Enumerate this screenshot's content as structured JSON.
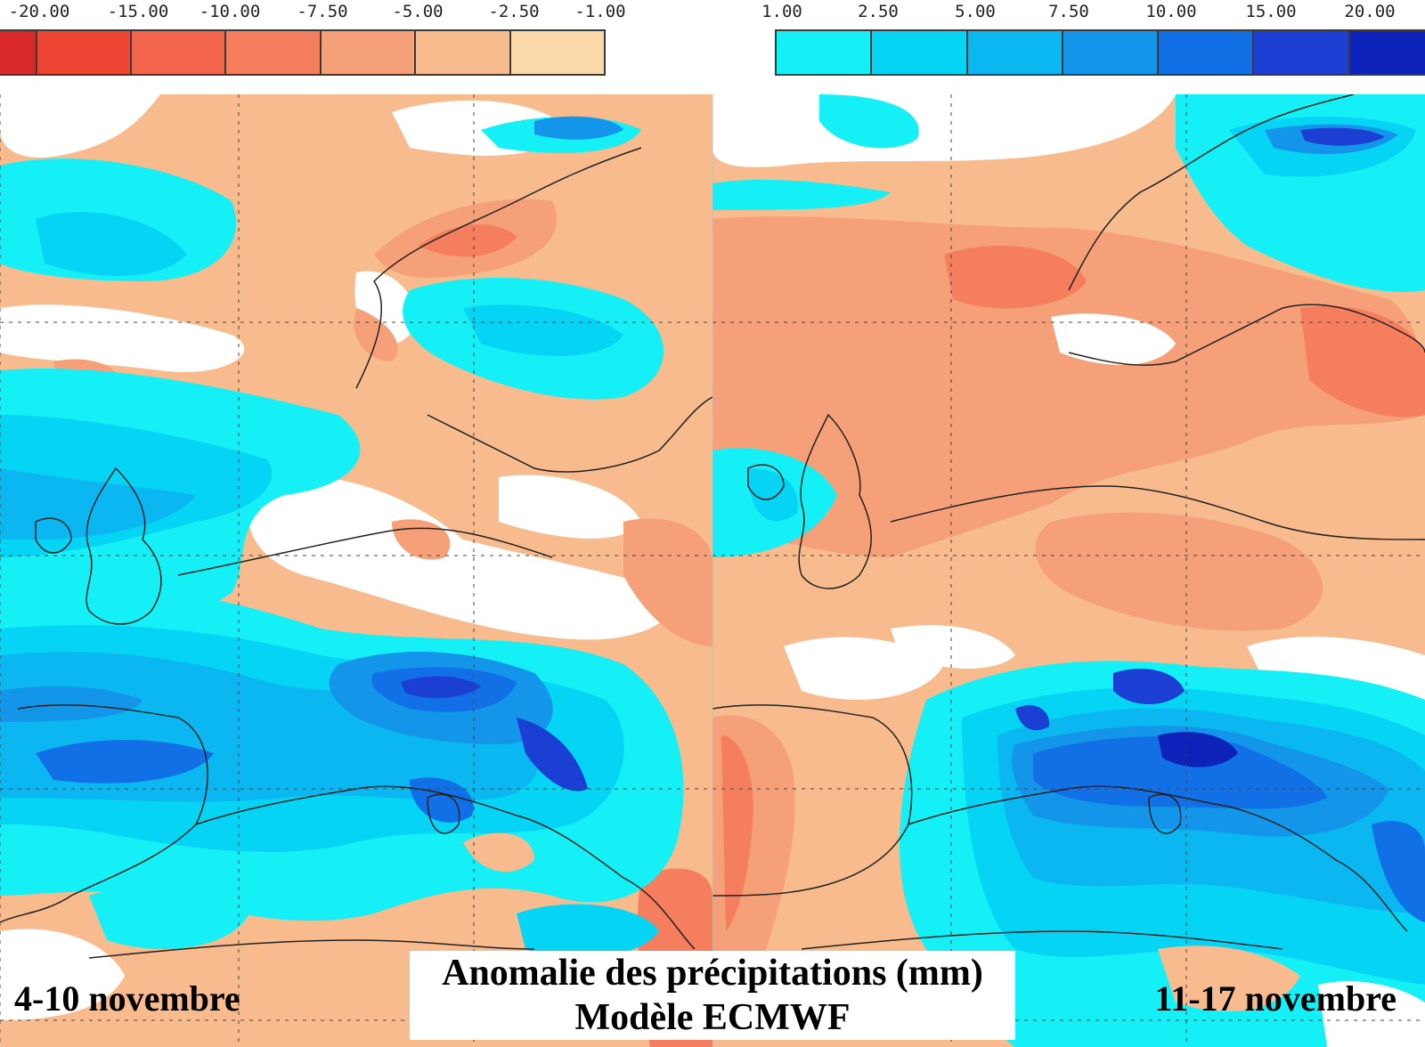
{
  "legend_negative": {
    "ticks": [
      "-20.00",
      "-15.00",
      "-10.00",
      "-7.50",
      "-5.00",
      "-2.50",
      "-1.00"
    ],
    "colors": [
      "#d9282a",
      "#ef4535",
      "#f3644c",
      "#f47e5e",
      "#f5a079",
      "#f7bb8e",
      "#fad8a8"
    ]
  },
  "legend_positive": {
    "ticks": [
      "1.00",
      "2.50",
      "5.00",
      "7.50",
      "10.00",
      "15.00",
      "20.00"
    ],
    "colors": [
      "#14f0f5",
      "#05d4f5",
      "#0bb7f0",
      "#1396ea",
      "#1270e6",
      "#1a3fd2",
      "#0d22b8"
    ]
  },
  "title": {
    "line1": "Anomalie des précipitations (mm)",
    "line2": "Modèle ECMWF"
  },
  "panels": {
    "left_label": "4-10 novembre",
    "right_label": "11-17 novembre"
  }
}
